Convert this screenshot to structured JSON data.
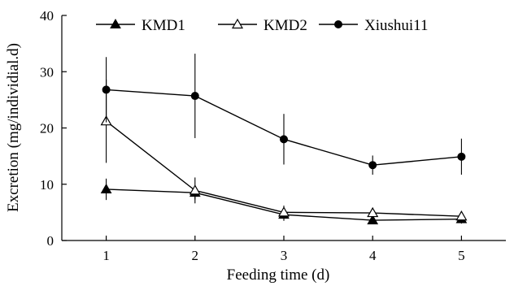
{
  "chart_data": {
    "type": "line",
    "xlabel": "Feeding time (d)",
    "ylabel": "Excretion (mg/individial.d)",
    "x": [
      1,
      2,
      3,
      4,
      5
    ],
    "xlim": [
      0.5,
      5.5
    ],
    "ylim": [
      0,
      40
    ],
    "yticks": [
      0,
      10,
      20,
      30,
      40
    ],
    "xticks": [
      1,
      2,
      3,
      4,
      5
    ],
    "legend_position": "top",
    "series": [
      {
        "name": "KMD1",
        "marker": "filled-triangle",
        "values": [
          9.1,
          8.5,
          4.6,
          3.6,
          3.8
        ],
        "error": [
          1.9,
          1.2,
          1.1,
          0.7,
          0.8
        ]
      },
      {
        "name": "KMD2",
        "marker": "open-triangle",
        "values": [
          21.2,
          8.9,
          5.0,
          4.9,
          4.3
        ],
        "error": [
          7.4,
          2.3,
          1.2,
          0.9,
          0.8
        ]
      },
      {
        "name": "Xiushui11",
        "marker": "filled-circle",
        "values": [
          26.8,
          25.7,
          18.0,
          13.4,
          14.9
        ],
        "error": [
          5.8,
          7.5,
          4.5,
          1.7,
          3.2
        ]
      }
    ]
  }
}
